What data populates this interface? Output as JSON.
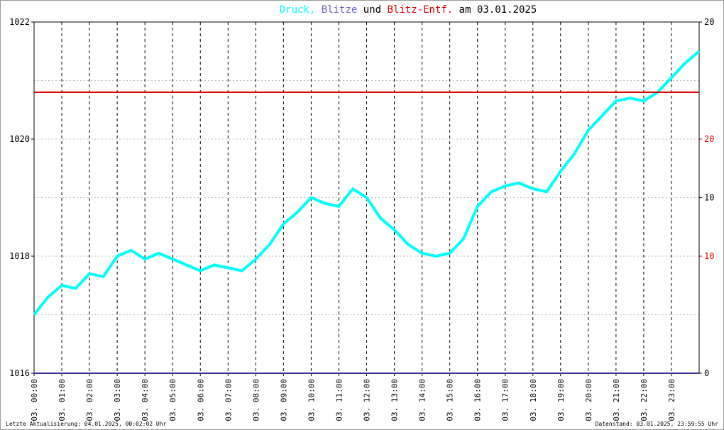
{
  "chart_data": {
    "type": "line",
    "title_parts": [
      ",",
      "und",
      "am 03.01.2025"
    ],
    "x": [
      0,
      0.5,
      1,
      1.5,
      2,
      2.5,
      3,
      3.5,
      4,
      4.5,
      5,
      5.5,
      6,
      6.5,
      7,
      7.5,
      8,
      8.5,
      9,
      9.5,
      10,
      10.5,
      11,
      11.5,
      12,
      12.5,
      13,
      13.5,
      14,
      14.5,
      15,
      15.5,
      16,
      16.5,
      17,
      17.5,
      18,
      18.5,
      19,
      19.5,
      20,
      20.5,
      21,
      21.5,
      22,
      22.5,
      23,
      23.5,
      24
    ],
    "xlim": [
      0,
      24
    ],
    "xticks": [
      {
        "value": 0,
        "label": "03. 00:00"
      },
      {
        "value": 1,
        "label": "03. 01:00"
      },
      {
        "value": 2,
        "label": "03. 02:00"
      },
      {
        "value": 3,
        "label": "03. 03:00"
      },
      {
        "value": 4,
        "label": "03. 04:00"
      },
      {
        "value": 5,
        "label": "03. 05:00"
      },
      {
        "value": 6,
        "label": "03. 06:00"
      },
      {
        "value": 7,
        "label": "03. 07:00"
      },
      {
        "value": 8,
        "label": "03. 08:00"
      },
      {
        "value": 9,
        "label": "03. 09:00"
      },
      {
        "value": 10,
        "label": "03. 10:00"
      },
      {
        "value": 11,
        "label": "03. 11:00"
      },
      {
        "value": 12,
        "label": "03. 12:00"
      },
      {
        "value": 13,
        "label": "03. 13:00"
      },
      {
        "value": 14,
        "label": "03. 14:00"
      },
      {
        "value": 15,
        "label": "03. 15:00"
      },
      {
        "value": 16,
        "label": "03. 16:00"
      },
      {
        "value": 17,
        "label": "03. 17:00"
      },
      {
        "value": 18,
        "label": "03. 18:00"
      },
      {
        "value": 19,
        "label": "03. 19:00"
      },
      {
        "value": 20,
        "label": "03. 20:00"
      },
      {
        "value": 21,
        "label": "03. 21:00"
      },
      {
        "value": 22,
        "label": "03. 22:00"
      },
      {
        "value": 23,
        "label": "03. 23:00"
      }
    ],
    "ylim": [
      1016,
      1022
    ],
    "yticks": [
      1016,
      1018,
      1020,
      1022
    ],
    "minor_yticks": [
      1017,
      1019,
      1021
    ],
    "y2lim": [
      0,
      20
    ],
    "y2ticks": [
      0,
      10,
      20
    ],
    "y3lim": [
      0,
      30
    ],
    "y3ticks": [
      10,
      20
    ],
    "y3color": "#dd0000",
    "series": [
      {
        "name": "Druck",
        "color": "#00ffff",
        "values": [
          1017.0,
          1017.3,
          1017.5,
          1017.45,
          1017.7,
          1017.65,
          1018.0,
          1018.1,
          1017.95,
          1018.05,
          1017.95,
          1017.85,
          1017.75,
          1017.85,
          1017.8,
          1017.75,
          1017.95,
          1018.2,
          1018.55,
          1018.75,
          1019.0,
          1018.9,
          1018.85,
          1019.15,
          1019.0,
          1018.65,
          1018.45,
          1018.2,
          1018.05,
          1018.0,
          1018.05,
          1018.3,
          1018.85,
          1019.1,
          1019.2,
          1019.25,
          1019.15,
          1019.1,
          1019.45,
          1019.75,
          1020.15,
          1020.4,
          1020.65,
          1020.7,
          1020.65,
          1020.8,
          1021.05,
          1021.3,
          1021.5
        ]
      },
      {
        "name": "Blitze",
        "color": "#333399",
        "axis": "y2",
        "x": [
          0,
          24
        ],
        "values": [
          0,
          0
        ]
      },
      {
        "name": "Blitz-Entf.",
        "color": "#dd0000",
        "axis": "y3",
        "x": [
          0,
          24
        ],
        "values": [
          24,
          24
        ]
      }
    ],
    "footer_left": "Letzte Aktualisierung: 04.01.2025, 00:02:02 Uhr",
    "footer_right": "Datenstand: 03.01.2025, 23:59:55 Uhr"
  }
}
